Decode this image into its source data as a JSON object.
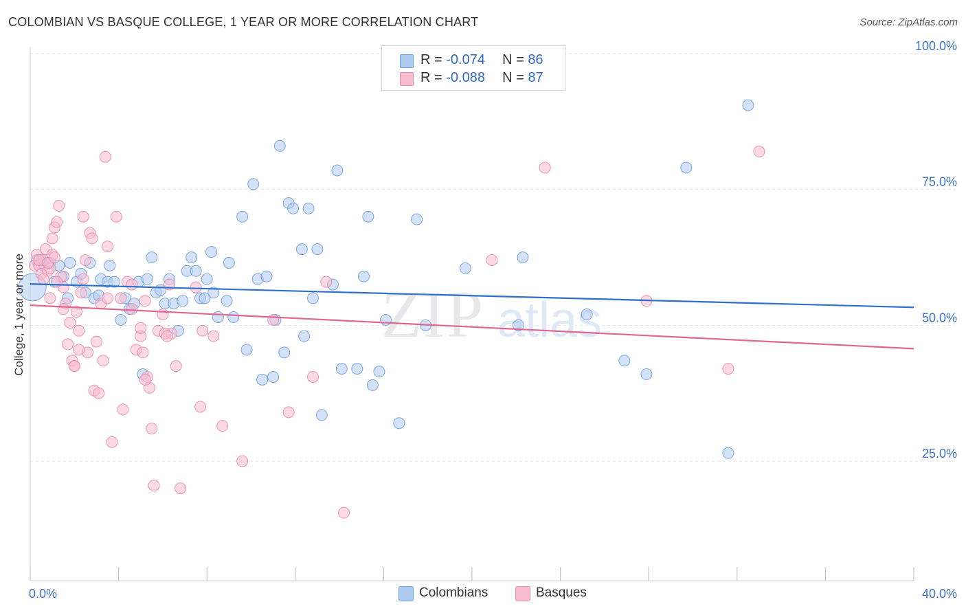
{
  "header": {
    "title": "COLOMBIAN VS BASQUE COLLEGE, 1 YEAR OR MORE CORRELATION CHART",
    "source": "Source: ZipAtlas.com"
  },
  "watermark": {
    "zip": "ZIP",
    "atlas": "atlas"
  },
  "legend_top": {
    "rows": [
      {
        "r_label": "R = ",
        "r_value": "-0.074",
        "n_label": "N = ",
        "n_value": "86"
      },
      {
        "r_label": "R = ",
        "r_value": "-0.088",
        "n_label": "N = ",
        "n_value": "87"
      }
    ]
  },
  "legend_bottom": {
    "items": [
      {
        "label": "Colombians"
      },
      {
        "label": "Basques"
      }
    ]
  },
  "colors": {
    "blue_fill": "#aecbf0",
    "blue_stroke": "#6f9fdc",
    "blue_line": "#2f6fc9",
    "pink_fill": "#f7bcd0",
    "pink_stroke": "#e98aab",
    "pink_line": "#e0658f",
    "axis_text": "#3b73c8",
    "grid": "#e2e2e2"
  },
  "chart_data": {
    "type": "scatter",
    "title": "COLOMBIAN VS BASQUE COLLEGE, 1 YEAR OR MORE CORRELATION CHART",
    "xlabel": "",
    "ylabel": "College, 1 year or more",
    "xlim": [
      0,
      40
    ],
    "ylim": [
      3,
      100
    ],
    "x_tick_labels": [
      {
        "value": 0,
        "label": "0.0%"
      },
      {
        "value": 40,
        "label": "40.0%"
      }
    ],
    "y_tick_labels": [
      {
        "value": 25,
        "label": "25.0%"
      },
      {
        "value": 50,
        "label": "50.0%"
      },
      {
        "value": 75,
        "label": "75.0%"
      },
      {
        "value": 100,
        "label": "100.0%"
      }
    ],
    "grid": true,
    "legend_position": "top-center",
    "series": [
      {
        "name": "Colombians",
        "R": -0.074,
        "N": 86,
        "trend": {
          "x": [
            0,
            40
          ],
          "y": [
            57.6,
            53.3
          ]
        },
        "points": [
          [
            0.1,
            57.0
          ],
          [
            0.5,
            62.0
          ],
          [
            0.6,
            61.0
          ],
          [
            0.9,
            61.5
          ],
          [
            1.1,
            58.0
          ],
          [
            1.5,
            59.0
          ],
          [
            1.7,
            55.0
          ],
          [
            1.8,
            61.5
          ],
          [
            2.1,
            58.0
          ],
          [
            2.3,
            59.5
          ],
          [
            2.5,
            56.0
          ],
          [
            2.7,
            61.5
          ],
          [
            2.9,
            55.0
          ],
          [
            3.1,
            55.5
          ],
          [
            3.2,
            58.5
          ],
          [
            3.5,
            58.0
          ],
          [
            3.6,
            61.0
          ],
          [
            3.8,
            58.0
          ],
          [
            4.1,
            51.0
          ],
          [
            4.3,
            55.0
          ],
          [
            4.5,
            53.0
          ],
          [
            4.7,
            54.0
          ],
          [
            4.9,
            58.0
          ],
          [
            5.1,
            41.0
          ],
          [
            5.3,
            58.5
          ],
          [
            5.5,
            62.5
          ],
          [
            5.7,
            56.0
          ],
          [
            5.9,
            56.5
          ],
          [
            6.1,
            54.0
          ],
          [
            6.3,
            58.5
          ],
          [
            6.5,
            54.0
          ],
          [
            6.7,
            49.0
          ],
          [
            6.9,
            54.5
          ],
          [
            7.1,
            60.0
          ],
          [
            7.3,
            62.5
          ],
          [
            7.5,
            60.0
          ],
          [
            7.7,
            55.0
          ],
          [
            7.9,
            55.0
          ],
          [
            8.0,
            58.5
          ],
          [
            8.2,
            63.5
          ],
          [
            8.3,
            56.0
          ],
          [
            8.5,
            51.5
          ],
          [
            8.9,
            54.5
          ],
          [
            9.0,
            61.5
          ],
          [
            9.2,
            51.5
          ],
          [
            9.6,
            70.0
          ],
          [
            9.8,
            45.5
          ],
          [
            10.1,
            76.0
          ],
          [
            10.3,
            58.5
          ],
          [
            10.5,
            40.0
          ],
          [
            10.7,
            59.0
          ],
          [
            11.0,
            40.5
          ],
          [
            11.1,
            51.0
          ],
          [
            11.5,
            45.0
          ],
          [
            11.3,
            83.0
          ],
          [
            11.7,
            72.5
          ],
          [
            11.9,
            71.5
          ],
          [
            12.3,
            64.0
          ],
          [
            12.4,
            48.0
          ],
          [
            12.6,
            71.5
          ],
          [
            13.0,
            64.0
          ],
          [
            13.2,
            33.5
          ],
          [
            12.8,
            55.0
          ],
          [
            13.7,
            57.5
          ],
          [
            13.9,
            78.5
          ],
          [
            14.1,
            42.0
          ],
          [
            14.8,
            42.0
          ],
          [
            15.1,
            59.0
          ],
          [
            15.3,
            70.0
          ],
          [
            15.5,
            39.0
          ],
          [
            15.8,
            41.5
          ],
          [
            16.1,
            51.0
          ],
          [
            16.7,
            32.0
          ],
          [
            17.5,
            69.5
          ],
          [
            17.9,
            50.0
          ],
          [
            19.7,
            60.5
          ],
          [
            22.1,
            50.0
          ],
          [
            22.3,
            62.5
          ],
          [
            25.2,
            52.0
          ],
          [
            26.9,
            43.5
          ],
          [
            27.9,
            41.0
          ],
          [
            29.7,
            79.0
          ],
          [
            31.6,
            26.5
          ],
          [
            32.5,
            90.5
          ],
          [
            0.3,
            62.0
          ],
          [
            1.3,
            61.0
          ]
        ]
      },
      {
        "name": "Basques",
        "R": -0.088,
        "N": 87,
        "trend": {
          "x": [
            0,
            40
          ],
          "y": [
            53.7,
            45.7
          ]
        },
        "points": [
          [
            0.2,
            61.0
          ],
          [
            0.3,
            63.0
          ],
          [
            0.4,
            61.0
          ],
          [
            0.5,
            59.5
          ],
          [
            0.6,
            62.0
          ],
          [
            0.7,
            64.0
          ],
          [
            0.8,
            60.0
          ],
          [
            0.9,
            55.0
          ],
          [
            1.0,
            66.0
          ],
          [
            1.1,
            68.0
          ],
          [
            1.2,
            69.0
          ],
          [
            1.3,
            72.0
          ],
          [
            1.4,
            59.0
          ],
          [
            1.5,
            57.0
          ],
          [
            1.6,
            54.0
          ],
          [
            1.7,
            46.5
          ],
          [
            1.8,
            50.5
          ],
          [
            1.9,
            43.5
          ],
          [
            2.0,
            42.5
          ],
          [
            2.1,
            52.5
          ],
          [
            2.2,
            49.0
          ],
          [
            2.3,
            56.0
          ],
          [
            2.4,
            70.0
          ],
          [
            2.5,
            62.0
          ],
          [
            2.6,
            45.0
          ],
          [
            2.7,
            67.0
          ],
          [
            2.8,
            66.0
          ],
          [
            2.9,
            38.0
          ],
          [
            3.0,
            47.0
          ],
          [
            3.1,
            37.5
          ],
          [
            3.2,
            54.0
          ],
          [
            3.3,
            43.5
          ],
          [
            3.4,
            81.0
          ],
          [
            3.5,
            64.5
          ],
          [
            3.7,
            28.5
          ],
          [
            3.9,
            70.0
          ],
          [
            4.1,
            55.0
          ],
          [
            4.2,
            34.5
          ],
          [
            4.4,
            58.0
          ],
          [
            4.6,
            57.5
          ],
          [
            4.8,
            45.5
          ],
          [
            5.0,
            48.0
          ],
          [
            5.1,
            45.0
          ],
          [
            5.2,
            54.5
          ],
          [
            5.3,
            40.5
          ],
          [
            5.4,
            38.5
          ],
          [
            5.5,
            31.0
          ],
          [
            5.6,
            20.5
          ],
          [
            5.8,
            49.0
          ],
          [
            6.0,
            52.0
          ],
          [
            6.1,
            48.5
          ],
          [
            6.3,
            57.5
          ],
          [
            6.6,
            42.5
          ],
          [
            6.8,
            20.0
          ],
          [
            7.5,
            57.0
          ],
          [
            7.7,
            35.0
          ],
          [
            7.8,
            49.0
          ],
          [
            8.3,
            48.0
          ],
          [
            8.7,
            31.5
          ],
          [
            9.6,
            25.0
          ],
          [
            11.0,
            51.0
          ],
          [
            11.7,
            34.0
          ],
          [
            12.8,
            40.5
          ],
          [
            13.4,
            58.0
          ],
          [
            14.2,
            15.5
          ],
          [
            20.9,
            62.0
          ],
          [
            23.3,
            79.0
          ],
          [
            27.9,
            54.5
          ],
          [
            31.6,
            42.0
          ],
          [
            33.0,
            82.0
          ],
          [
            0.6,
            58.5
          ],
          [
            0.9,
            60.5
          ],
          [
            1.0,
            63.0
          ],
          [
            1.5,
            53.0
          ],
          [
            2.2,
            45.5
          ],
          [
            2.4,
            58.5
          ],
          [
            3.5,
            55.0
          ],
          [
            4.6,
            53.0
          ],
          [
            5.0,
            49.5
          ],
          [
            5.2,
            40.0
          ],
          [
            6.4,
            48.5
          ],
          [
            6.2,
            48.0
          ],
          [
            1.2,
            58.0
          ],
          [
            2.0,
            42.5
          ],
          [
            0.4,
            62.0
          ],
          [
            0.8,
            61.5
          ],
          [
            1.1,
            62.5
          ]
        ]
      }
    ]
  }
}
